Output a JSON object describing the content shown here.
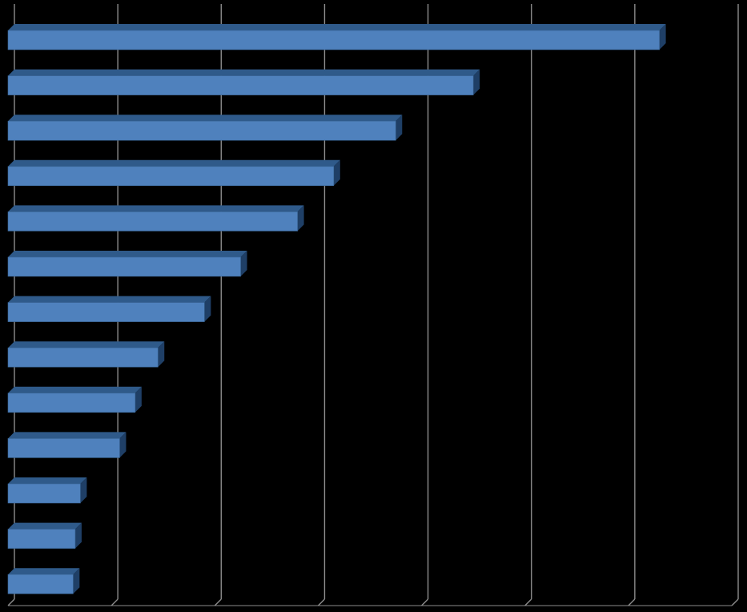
{
  "chart_data": {
    "type": "bar",
    "orientation": "horizontal",
    "style": "3d",
    "title": "",
    "xlabel": "",
    "ylabel": "",
    "categories": [
      "",
      "",
      "",
      "",
      "",
      "",
      "",
      "",
      "",
      "",
      "",
      "",
      ""
    ],
    "values": [
      6.3,
      4.5,
      3.75,
      3.15,
      2.8,
      2.25,
      1.9,
      1.45,
      1.23,
      1.08,
      0.7,
      0.65,
      0.63
    ],
    "xlim": [
      0,
      7
    ],
    "grid": true,
    "bar_color": "#4F81BD",
    "bar_top_color": "#2F5A8A",
    "bar_side_color": "#1F3F66",
    "grid_color": "#8C8C8C",
    "background_color": "#000000"
  }
}
